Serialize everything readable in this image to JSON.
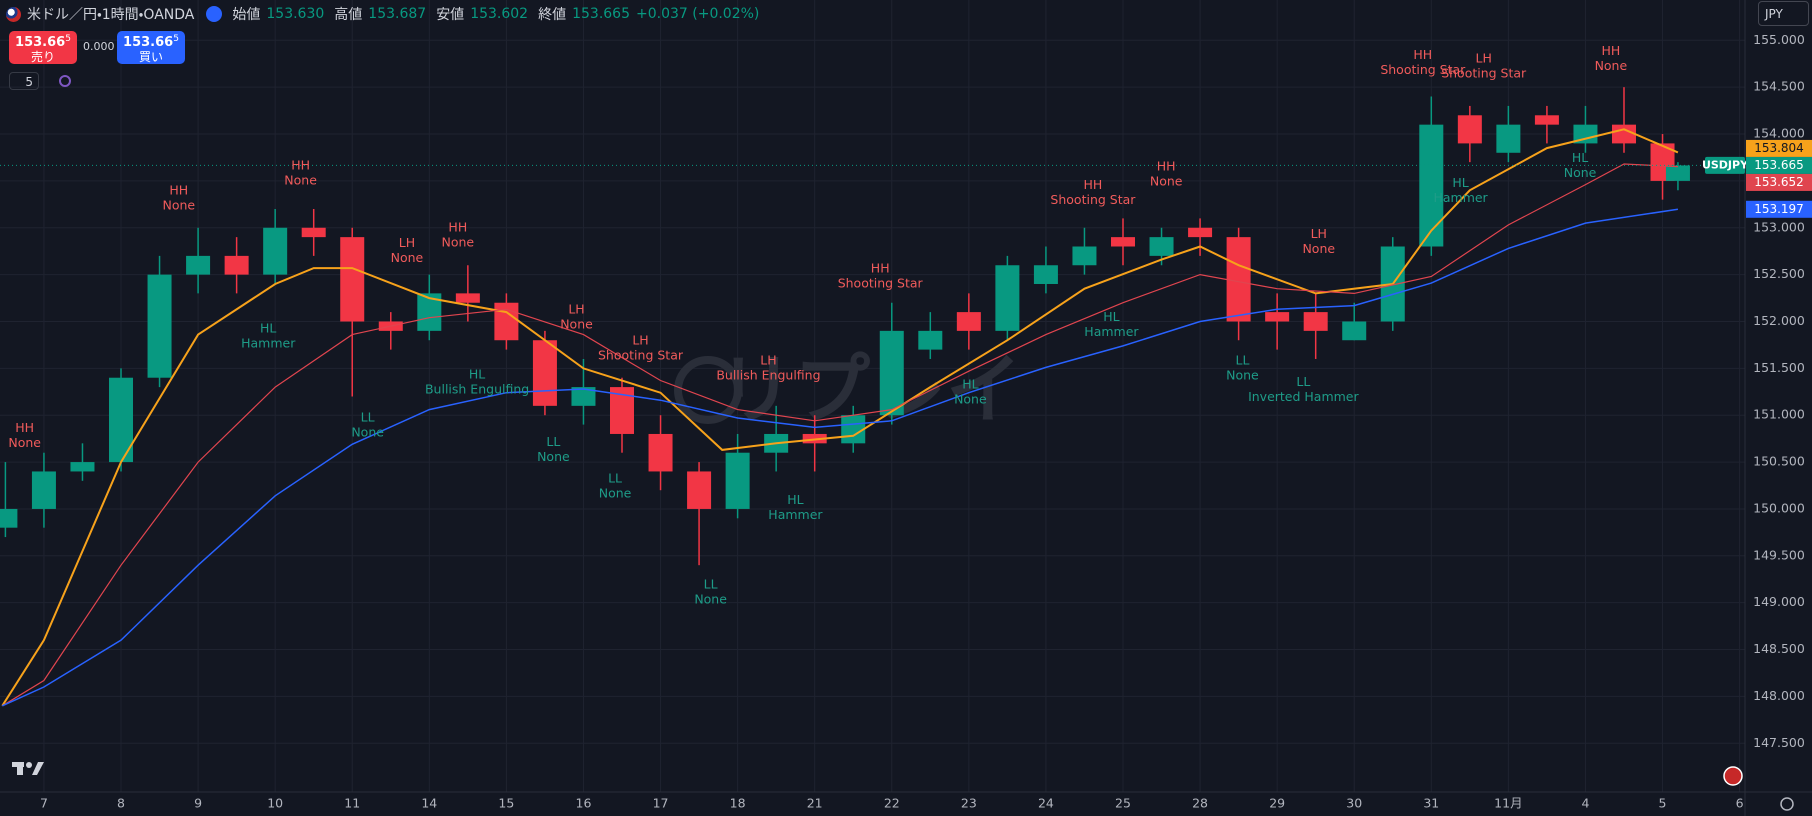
{
  "header": {
    "symbol": "米ドル／円・1時間・OANDA",
    "ohlc": [
      {
        "label": "始値",
        "value": "153.630"
      },
      {
        "label": "高値",
        "value": "153.687"
      },
      {
        "label": "安値",
        "value": "153.602"
      },
      {
        "label": "終値",
        "value": "153.665"
      }
    ],
    "change": "+0.037 (+0.02%)",
    "currency": "JPY"
  },
  "trade": {
    "sell": {
      "price": "153.66",
      "pip": "5",
      "label": "売り"
    },
    "spread": "0.000",
    "buy": {
      "price": "153.66",
      "pip": "5",
      "label": "買い"
    },
    "indicators": "5"
  },
  "chart_data": {
    "type": "candlestick",
    "watermark": "リプレイ",
    "symbol_tag": "USDJPY",
    "up_color": "#089981",
    "down_color": "#f23645",
    "grid": true,
    "xlim": [
      -0.57,
      22.07
    ],
    "ylim": [
      146.98,
      155.43
    ],
    "xticks": [
      {
        "value": 0,
        "label": "7"
      },
      {
        "value": 1,
        "label": "8"
      },
      {
        "value": 2,
        "label": "9"
      },
      {
        "value": 3,
        "label": "10"
      },
      {
        "value": 4,
        "label": "11"
      },
      {
        "value": 5,
        "label": "14"
      },
      {
        "value": 6,
        "label": "15"
      },
      {
        "value": 7,
        "label": "16"
      },
      {
        "value": 8,
        "label": "17"
      },
      {
        "value": 9,
        "label": "18"
      },
      {
        "value": 10,
        "label": "21"
      },
      {
        "value": 11,
        "label": "22"
      },
      {
        "value": 12,
        "label": "23"
      },
      {
        "value": 13,
        "label": "24"
      },
      {
        "value": 14,
        "label": "25"
      },
      {
        "value": 15,
        "label": "28"
      },
      {
        "value": 16,
        "label": "29"
      },
      {
        "value": 17,
        "label": "30"
      },
      {
        "value": 18,
        "label": "31"
      },
      {
        "value": 19,
        "label": "11月"
      },
      {
        "value": 20,
        "label": "4"
      },
      {
        "value": 21,
        "label": "5"
      },
      {
        "value": 22,
        "label": "6"
      }
    ],
    "yticks": [
      {
        "value": 147.5,
        "label": "147.500"
      },
      {
        "value": 148,
        "label": "148.000"
      },
      {
        "value": 148.5,
        "label": "148.500"
      },
      {
        "value": 149,
        "label": "149.000"
      },
      {
        "value": 149.5,
        "label": "149.500"
      },
      {
        "value": 150,
        "label": "150.000"
      },
      {
        "value": 150.5,
        "label": "150.500"
      },
      {
        "value": 151,
        "label": "151.000"
      },
      {
        "value": 151.5,
        "label": "151.500"
      },
      {
        "value": 152,
        "label": "152.000"
      },
      {
        "value": 152.5,
        "label": "152.500"
      },
      {
        "value": 153,
        "label": "153.000"
      },
      {
        "value": 153.5,
        "label": "153.500"
      },
      {
        "value": 154,
        "label": "154.000"
      },
      {
        "value": 154.5,
        "label": "154.500"
      },
      {
        "value": 155,
        "label": "155.000"
      }
    ],
    "x": [
      -0.5,
      0,
      0.5,
      1,
      1.5,
      2,
      2.5,
      3,
      3.5,
      4,
      4.5,
      5,
      5.5,
      6,
      6.5,
      7,
      7.5,
      8,
      8.5,
      9,
      9.5,
      10,
      10.5,
      11,
      11.5,
      12,
      12.5,
      13,
      13.5,
      14,
      14.5,
      15,
      15.5,
      16,
      16.5,
      17,
      17.5,
      18,
      18.5,
      19,
      19.5,
      20,
      20.5,
      21,
      21.2
    ],
    "open": [
      149.8,
      150.0,
      150.4,
      150.5,
      151.4,
      152.5,
      152.7,
      152.5,
      153.0,
      152.9,
      152.0,
      151.9,
      152.3,
      152.2,
      151.8,
      151.1,
      151.3,
      150.8,
      150.4,
      150.0,
      150.6,
      150.8,
      150.7,
      151.0,
      151.7,
      152.1,
      151.9,
      152.4,
      152.6,
      152.9,
      152.7,
      153.0,
      152.9,
      152.1,
      152.1,
      151.8,
      152.0,
      152.8,
      154.2,
      153.8,
      154.2,
      153.9,
      154.1,
      153.9,
      153.5
    ],
    "high": [
      150.5,
      150.6,
      150.7,
      151.5,
      152.7,
      153.0,
      152.9,
      153.2,
      153.2,
      153.0,
      152.1,
      152.5,
      152.6,
      152.3,
      151.9,
      151.6,
      151.4,
      151.0,
      150.5,
      150.8,
      151.1,
      151.0,
      151.1,
      152.2,
      152.1,
      152.3,
      152.7,
      152.8,
      153.0,
      153.1,
      153.0,
      153.1,
      153.0,
      152.3,
      152.3,
      152.2,
      152.9,
      154.4,
      154.3,
      154.3,
      154.3,
      154.3,
      154.5,
      154.0,
      153.7
    ],
    "low": [
      149.7,
      149.8,
      150.3,
      150.4,
      151.3,
      152.3,
      152.3,
      152.4,
      152.7,
      151.2,
      151.7,
      151.8,
      152.0,
      151.7,
      151.0,
      150.9,
      150.6,
      150.2,
      149.4,
      149.9,
      150.4,
      150.4,
      150.6,
      150.9,
      151.6,
      151.7,
      151.8,
      152.3,
      152.5,
      152.6,
      152.6,
      152.7,
      151.8,
      151.7,
      151.6,
      151.8,
      151.9,
      152.7,
      153.7,
      153.7,
      153.9,
      153.8,
      153.8,
      153.3,
      153.4
    ],
    "close": [
      150.0,
      150.4,
      150.5,
      151.4,
      152.5,
      152.7,
      152.5,
      153.0,
      152.9,
      152.0,
      151.9,
      152.3,
      152.2,
      151.8,
      151.1,
      151.3,
      150.8,
      150.4,
      150.0,
      150.6,
      150.8,
      150.7,
      151.0,
      151.9,
      151.9,
      151.9,
      152.6,
      152.6,
      152.8,
      152.8,
      152.9,
      152.9,
      152.0,
      152.0,
      151.9,
      152.0,
      152.8,
      154.1,
      153.9,
      154.1,
      154.1,
      154.1,
      153.9,
      153.5,
      153.665
    ],
    "series": [
      {
        "color": "#f7a21b",
        "width": 2,
        "x": [
          -0.54,
          0,
          1,
          2,
          3,
          3.5,
          4,
          5,
          6,
          7,
          8,
          8.8,
          9.5,
          10.5,
          11.5,
          12.5,
          13.5,
          14.5,
          15,
          15.5,
          16.5,
          17.5,
          18,
          18.5,
          19.5,
          20.5,
          21.2
        ],
        "values": [
          147.9,
          148.6,
          150.5,
          151.86,
          152.4,
          152.57,
          152.57,
          152.25,
          152.1,
          151.5,
          151.24,
          150.63,
          150.7,
          150.78,
          151.3,
          151.8,
          152.35,
          152.66,
          152.8,
          152.6,
          152.3,
          152.4,
          152.97,
          153.4,
          153.85,
          154.05,
          153.804
        ]
      },
      {
        "color": "#e0454f",
        "width": 1.2,
        "x": [
          -0.54,
          0,
          1,
          2,
          3,
          4,
          5,
          6,
          7,
          8,
          9,
          10,
          11,
          12,
          13,
          14,
          15,
          16,
          17,
          18,
          19,
          20,
          20.5,
          21.2
        ],
        "values": [
          147.9,
          148.17,
          149.4,
          150.5,
          151.3,
          151.86,
          152.04,
          152.13,
          151.86,
          151.37,
          151.06,
          150.94,
          151.06,
          151.47,
          151.86,
          152.2,
          152.5,
          152.35,
          152.3,
          152.48,
          153.03,
          153.46,
          153.68,
          153.652
        ]
      },
      {
        "color": "#2962ff",
        "width": 1.5,
        "x": [
          -0.54,
          0,
          1,
          2,
          3,
          4,
          5,
          6,
          7,
          8,
          9,
          10,
          11,
          12,
          13,
          14,
          15,
          16,
          17,
          18,
          19,
          20,
          21.2
        ],
        "values": [
          147.9,
          148.1,
          148.6,
          149.4,
          150.14,
          150.69,
          151.06,
          151.24,
          151.28,
          151.16,
          150.97,
          150.87,
          150.94,
          151.24,
          151.51,
          151.74,
          152.0,
          152.13,
          152.17,
          152.41,
          152.78,
          153.05,
          153.197
        ]
      }
    ],
    "annotations": [
      {
        "x": -0.25,
        "y": 150.86,
        "swing": "HH",
        "pattern": "None",
        "color": "#f05b5b"
      },
      {
        "x": 1.75,
        "y": 153.39,
        "swing": "HH",
        "pattern": "None",
        "color": "#f05b5b"
      },
      {
        "x": 3.33,
        "y": 153.66,
        "swing": "HH",
        "pattern": "None",
        "color": "#f05b5b"
      },
      {
        "x": 2.91,
        "y": 151.92,
        "swing": "HL",
        "pattern": "Hammer",
        "color": "#1e9c88"
      },
      {
        "x": 4.71,
        "y": 152.83,
        "swing": "LH",
        "pattern": "None",
        "color": "#f05b5b"
      },
      {
        "x": 5.37,
        "y": 153.0,
        "swing": "HH",
        "pattern": "None",
        "color": "#f05b5b"
      },
      {
        "x": 4.2,
        "y": 150.97,
        "swing": "LL",
        "pattern": "None",
        "color": "#1e9c88"
      },
      {
        "x": 5.62,
        "y": 151.43,
        "swing": "HL",
        "pattern": "Bullish Engulfing",
        "color": "#1e9c88"
      },
      {
        "x": 6.91,
        "y": 152.12,
        "swing": "LH",
        "pattern": "None",
        "color": "#f05b5b"
      },
      {
        "x": 6.61,
        "y": 150.71,
        "swing": "LL",
        "pattern": "None",
        "color": "#1e9c88"
      },
      {
        "x": 7.74,
        "y": 151.79,
        "swing": "LH",
        "pattern": "Shooting Star",
        "color": "#f05b5b"
      },
      {
        "x": 7.41,
        "y": 150.32,
        "swing": "LL",
        "pattern": "None",
        "color": "#1e9c88"
      },
      {
        "x": 8.65,
        "y": 149.19,
        "swing": "LL",
        "pattern": "None",
        "color": "#1e9c88"
      },
      {
        "x": 9.4,
        "y": 151.58,
        "swing": "LH",
        "pattern": "Bullish Engulfing",
        "color": "#f05b5b"
      },
      {
        "x": 9.75,
        "y": 150.09,
        "swing": "HL",
        "pattern": "Hammer",
        "color": "#1e9c88"
      },
      {
        "x": 10.85,
        "y": 152.56,
        "swing": "HH",
        "pattern": "Shooting Star",
        "color": "#f05b5b"
      },
      {
        "x": 12.02,
        "y": 151.32,
        "swing": "HL",
        "pattern": "None",
        "color": "#1e9c88"
      },
      {
        "x": 13.61,
        "y": 153.45,
        "swing": "HH",
        "pattern": "Shooting Star",
        "color": "#f05b5b"
      },
      {
        "x": 13.85,
        "y": 152.04,
        "swing": "HL",
        "pattern": "Hammer",
        "color": "#1e9c88"
      },
      {
        "x": 14.56,
        "y": 153.65,
        "swing": "HH",
        "pattern": "None",
        "color": "#f05b5b"
      },
      {
        "x": 15.55,
        "y": 151.58,
        "swing": "LL",
        "pattern": "None",
        "color": "#1e9c88"
      },
      {
        "x": 16.54,
        "y": 152.93,
        "swing": "LH",
        "pattern": "None",
        "color": "#f05b5b"
      },
      {
        "x": 16.34,
        "y": 151.35,
        "swing": "LL",
        "pattern": "Inverted Hammer",
        "color": "#1e9c88"
      },
      {
        "x": 17.89,
        "y": 154.84,
        "swing": "HH",
        "pattern": "Shooting Star",
        "color": "#f05b5b"
      },
      {
        "x": 18.68,
        "y": 154.8,
        "swing": "LH",
        "pattern": "Shooting Star",
        "color": "#f05b5b"
      },
      {
        "x": 18.38,
        "y": 153.47,
        "swing": "HL",
        "pattern": "Hammer",
        "color": "#1e9c88"
      },
      {
        "x": 20.33,
        "y": 154.88,
        "swing": "HH",
        "pattern": "None",
        "color": "#f05b5b"
      },
      {
        "x": 19.93,
        "y": 153.74,
        "swing": "HL",
        "pattern": "None",
        "color": "#1e9c88"
      }
    ]
  }
}
